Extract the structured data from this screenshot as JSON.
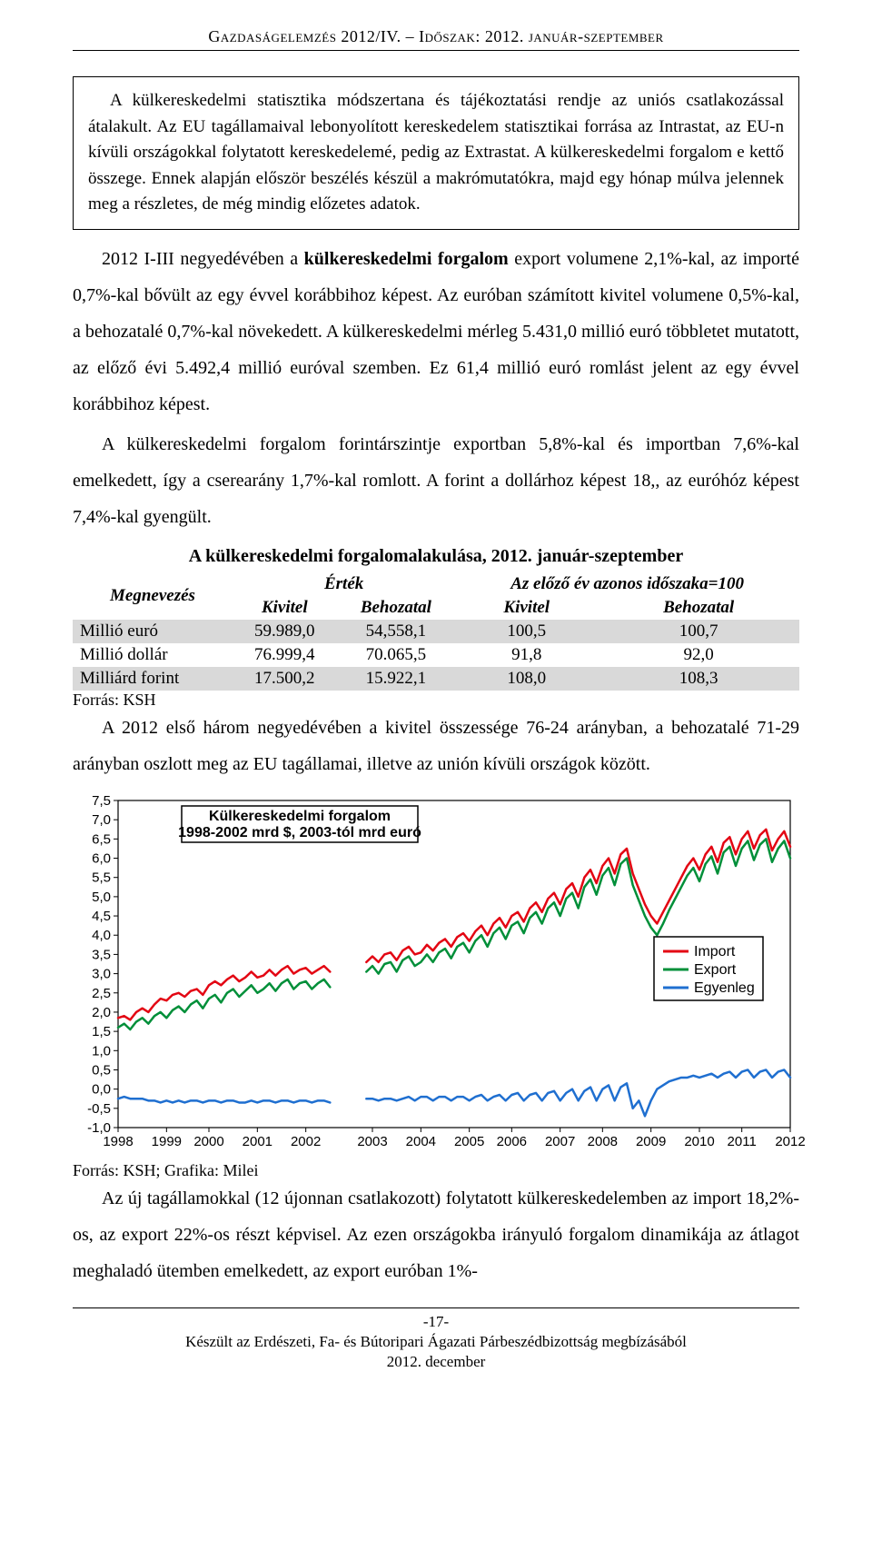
{
  "header": "Gazdaságelemzés 2012/IV. – Időszak: 2012. január-szeptember",
  "boxed_text": "A külkereskedelmi statisztika módszertana és tájékoztatási rendje az uniós csatlakozással átalakult. Az EU tagállamaival lebonyolított kereskedelem statisztikai forrása az Intrastat, az EU-n kívüli országokkal folytatott kereskedelemé, pedig az Extrastat. A külkereskedelmi forgalom e kettő összege. Ennek alapján először beszélés készül a makrómutatókra, majd egy hónap múlva jelennek meg a részletes, de még mindig előzetes adatok.",
  "para1_a": "2012 I-III negyedévében a ",
  "para1_b": "külkereskedelmi forgalom",
  "para1_c": " export volumene 2,1%-kal, az importé 0,7%-kal bővült az egy évvel korábbihoz képest. Az euróban számított kivitel volumene 0,5%-kal, a behozatalé 0,7%-kal növekedett. A külkereskedelmi mérleg 5.431,0 millió euró többletet mutatott, az előző évi 5.492,4 millió euróval szemben. Ez 61,4 millió euró romlást jelent az egy évvel korábbihoz képest.",
  "para2": "A külkereskedelmi forgalom forintárszintje exportban 5,8%-kal és importban 7,6%-kal emelkedett, így a cserearány 1,7%-kal romlott. A forint a dollárhoz képest 18,, az euróhóz képest 7,4%-kal gyengült.",
  "table_title": "A külkereskedelmi forgalomalakulása, 2012. január-szeptember",
  "table": {
    "head1": {
      "c0": "Megnevezés",
      "c1": "Érték",
      "c2": "Az előző év azonos időszaka=100"
    },
    "head2": {
      "c1": "Kivitel",
      "c2": "Behozatal",
      "c3": "Kivitel",
      "c4": "Behozatal"
    },
    "rows": [
      {
        "label": "Millió euró",
        "v1": "59.989,0",
        "v2": "54,558,1",
        "v3": "100,5",
        "v4": "100,7",
        "bg": "grey"
      },
      {
        "label": "Millió dollár",
        "v1": "76.999,4",
        "v2": "70.065,5",
        "v3": "91,8",
        "v4": "92,0",
        "bg": "white"
      },
      {
        "label": "Milliárd forint",
        "v1": "17.500,2",
        "v2": "15.922,1",
        "v3": "108,0",
        "v4": "108,3",
        "bg": "grey"
      }
    ]
  },
  "src1": "Forrás: KSH",
  "para3": "A 2012 első három negyedévében a kivitel összessége 76-24 arányban, a behozatalé 71-29 arányban oszlott meg az EU tagállamai, illetve az unión kívüli országok között.",
  "chart": {
    "type": "line",
    "title_l1": "Külkereskedelmi forgalom",
    "title_l2": "1998-2002 mrd $, 2003-tól mrd euró",
    "y": {
      "min": -1.0,
      "max": 7.5,
      "step": 0.5,
      "ticks": [
        "7,5",
        "7,0",
        "6,5",
        "6,0",
        "5,5",
        "5,0",
        "4,5",
        "4,0",
        "3,5",
        "3,0",
        "2,5",
        "2,0",
        "1,5",
        "1,0",
        "0,5",
        "0,0",
        "-0,5",
        "-1,0"
      ]
    },
    "x_years": [
      "1998",
      "1999",
      "2000",
      "2001",
      "2002",
      "2003",
      "2004",
      "2005",
      "2006",
      "2007",
      "2008",
      "2009",
      "2010",
      "2011",
      "2012"
    ],
    "gap_after_index": 4,
    "colors": {
      "import": "#e30613",
      "export": "#008f39",
      "balance": "#1f6fd0",
      "axis": "#000000",
      "bg": "#ffffff",
      "border": "#000000"
    },
    "line_width": 2.5,
    "legend": [
      "Import",
      "Export",
      "Egyenleg"
    ],
    "series": {
      "import": [
        1.85,
        1.9,
        1.8,
        2.0,
        2.1,
        2.0,
        2.2,
        2.35,
        2.3,
        2.45,
        2.5,
        2.4,
        2.55,
        2.6,
        2.45,
        2.7,
        2.8,
        2.7,
        2.85,
        2.95,
        2.8,
        2.9,
        3.05,
        2.9,
        2.95,
        3.1,
        2.95,
        3.1,
        3.2,
        3.0,
        3.1,
        3.15,
        3.0,
        3.1,
        3.2,
        3.05,
        null,
        3.3,
        3.45,
        3.3,
        3.5,
        3.55,
        3.35,
        3.6,
        3.7,
        3.5,
        3.55,
        3.75,
        3.6,
        3.8,
        3.9,
        3.7,
        3.95,
        4.05,
        3.85,
        4.1,
        4.25,
        4.0,
        4.3,
        4.45,
        4.2,
        4.5,
        4.6,
        4.35,
        4.7,
        4.85,
        4.6,
        4.95,
        5.1,
        4.8,
        5.2,
        5.35,
        5.0,
        5.5,
        5.7,
        5.35,
        5.8,
        6.0,
        5.6,
        6.1,
        6.25,
        5.6,
        5.2,
        4.8,
        4.5,
        4.3,
        4.6,
        4.9,
        5.2,
        5.5,
        5.8,
        6.0,
        5.7,
        6.1,
        6.3,
        5.9,
        6.4,
        6.55,
        6.1,
        6.5,
        6.7,
        6.25,
        6.6,
        6.75,
        6.2,
        6.5,
        6.7,
        6.3
      ],
      "export": [
        1.6,
        1.7,
        1.55,
        1.75,
        1.85,
        1.7,
        1.9,
        2.0,
        1.85,
        2.05,
        2.15,
        2.0,
        2.2,
        2.3,
        2.1,
        2.35,
        2.45,
        2.25,
        2.5,
        2.6,
        2.4,
        2.55,
        2.7,
        2.5,
        2.6,
        2.75,
        2.55,
        2.75,
        2.85,
        2.6,
        2.75,
        2.8,
        2.6,
        2.75,
        2.85,
        2.65,
        null,
        3.05,
        3.2,
        3.0,
        3.25,
        3.3,
        3.05,
        3.35,
        3.45,
        3.2,
        3.3,
        3.5,
        3.3,
        3.55,
        3.65,
        3.4,
        3.7,
        3.8,
        3.55,
        3.85,
        4.0,
        3.7,
        4.05,
        4.2,
        3.9,
        4.25,
        4.35,
        4.05,
        4.45,
        4.6,
        4.3,
        4.7,
        4.85,
        4.5,
        4.95,
        5.1,
        4.7,
        5.25,
        5.45,
        5.05,
        5.55,
        5.75,
        5.3,
        5.85,
        6.0,
        5.3,
        4.9,
        4.5,
        4.2,
        4.0,
        4.3,
        4.65,
        4.95,
        5.25,
        5.55,
        5.75,
        5.4,
        5.85,
        6.05,
        5.6,
        6.15,
        6.3,
        5.8,
        6.25,
        6.45,
        5.95,
        6.35,
        6.5,
        5.9,
        6.25,
        6.45,
        6.0
      ],
      "balance": [
        -0.25,
        -0.2,
        -0.25,
        -0.25,
        -0.25,
        -0.3,
        -0.3,
        -0.35,
        -0.3,
        -0.35,
        -0.3,
        -0.35,
        -0.3,
        -0.3,
        -0.35,
        -0.3,
        -0.3,
        -0.35,
        -0.3,
        -0.3,
        -0.35,
        -0.35,
        -0.3,
        -0.35,
        -0.3,
        -0.3,
        -0.35,
        -0.3,
        -0.3,
        -0.35,
        -0.3,
        -0.3,
        -0.35,
        -0.3,
        -0.3,
        -0.35,
        null,
        -0.25,
        -0.25,
        -0.3,
        -0.25,
        -0.25,
        -0.3,
        -0.25,
        -0.2,
        -0.3,
        -0.2,
        -0.2,
        -0.3,
        -0.2,
        -0.2,
        -0.3,
        -0.2,
        -0.2,
        -0.3,
        -0.2,
        -0.15,
        -0.3,
        -0.2,
        -0.15,
        -0.3,
        -0.15,
        -0.1,
        -0.3,
        -0.15,
        -0.1,
        -0.3,
        -0.1,
        -0.05,
        -0.3,
        -0.1,
        0.0,
        -0.3,
        -0.05,
        0.05,
        -0.3,
        0.0,
        0.1,
        -0.3,
        0.05,
        0.15,
        -0.5,
        -0.3,
        -0.7,
        -0.3,
        0.0,
        0.1,
        0.2,
        0.25,
        0.3,
        0.3,
        0.35,
        0.3,
        0.35,
        0.4,
        0.3,
        0.4,
        0.45,
        0.3,
        0.45,
        0.5,
        0.3,
        0.45,
        0.5,
        0.3,
        0.45,
        0.5,
        0.3
      ]
    }
  },
  "src2": "Forrás: KSH; Grafika: Milei",
  "para4": "Az új tagállamokkal (12 újonnan csatlakozott) folytatott külkereskedelemben az import 18,2%-os, az export 22%-os részt képvisel. Az ezen országokba irányuló forgalom dinamikája az átlagot meghaladó ütemben emelkedett, az export euróban 1%-",
  "footer": {
    "page": "-17-",
    "l2": "Készült az Erdészeti, Fa- és Bútoripari Ágazati Párbeszédbizottság megbízásából",
    "l3": "2012. december"
  }
}
